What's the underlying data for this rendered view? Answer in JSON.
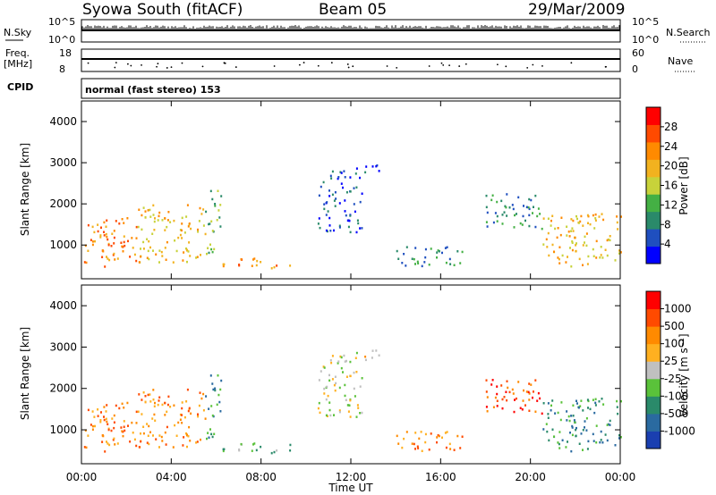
{
  "header": {
    "station": "Syowa South (fitACF)",
    "beam": "Beam 05",
    "date": "29/Mar/2009"
  },
  "top_panels": {
    "nsky_label": "N.Sky",
    "nsky_ticks": [
      "10^5",
      "10^0"
    ],
    "nsearch_label": "N.Search",
    "nsearch_ticks": [
      "10^5",
      "10^0"
    ],
    "freq_label": "Freq.",
    "freq_unit": "[MHz]",
    "freq_ticks": [
      "18",
      "8"
    ],
    "nave_label": "Nave",
    "nave_ticks": [
      "60",
      "0"
    ],
    "cpid_label": "CPID",
    "cpid_value": "normal (fast stereo) 153"
  },
  "chart_data": [
    {
      "type": "heatmap",
      "name": "power",
      "ylabel": "Slant Range [km]",
      "x_range_hours": [
        0,
        24
      ],
      "ylim": [
        180,
        4500
      ],
      "yticks": [
        "1000",
        "2000",
        "3000",
        "4000"
      ],
      "colorbar_label": "Power [dB]",
      "colorbar_ticks": [
        "28",
        "24",
        "20",
        "16",
        "12",
        "8",
        "4"
      ],
      "colors": [
        "#0000ff",
        "#1f4fbf",
        "#2a8a6a",
        "#44b044",
        "#c8d23a",
        "#f2b21f",
        "#ff8a00",
        "#ff4a00",
        "#ff0000"
      ],
      "echo_regions_hours_km": [
        {
          "t": [
            0.0,
            2.5
          ],
          "r": [
            500,
            1700
          ],
          "level": 6
        },
        {
          "t": [
            2.5,
            5.5
          ],
          "r": [
            600,
            2000
          ],
          "level": 5
        },
        {
          "t": [
            5.5,
            6.2
          ],
          "r": [
            800,
            2400
          ],
          "level": 3
        },
        {
          "t": [
            6.2,
            9.5
          ],
          "r": [
            450,
            700
          ],
          "level": 6
        },
        {
          "t": [
            10.5,
            12.5
          ],
          "r": [
            1300,
            2900
          ],
          "level": 1
        },
        {
          "t": [
            12.5,
            13.5
          ],
          "r": [
            2700,
            3000
          ],
          "level": 1
        },
        {
          "t": [
            14.0,
            17.0
          ],
          "r": [
            500,
            1000
          ],
          "level": 2
        },
        {
          "t": [
            18.0,
            20.5
          ],
          "r": [
            1400,
            2300
          ],
          "level": 2
        },
        {
          "t": [
            20.5,
            24.0
          ],
          "r": [
            500,
            1800
          ],
          "level": 5
        }
      ]
    },
    {
      "type": "heatmap",
      "name": "velocity",
      "ylabel": "Slant Range [km]",
      "xlabel": "Time UT",
      "x_range_hours": [
        0,
        24
      ],
      "xticks": [
        "00:00",
        "04:00",
        "08:00",
        "12:00",
        "16:00",
        "20:00",
        "00:00"
      ],
      "ylim": [
        180,
        4500
      ],
      "yticks": [
        "1000",
        "2000",
        "3000",
        "4000"
      ],
      "colorbar_label": "Velocity [m s⁻¹]",
      "colorbar_ticks": [
        "1000",
        "500",
        "100",
        "25",
        "-25",
        "-100",
        "-500",
        "-1000"
      ],
      "colors": [
        "#1a3fb0",
        "#2a6aa0",
        "#2a8a6a",
        "#5ac23a",
        "#c0c0c0",
        "#ffb020",
        "#ff8a00",
        "#ff4a00",
        "#ff0000"
      ],
      "echo_regions_hours_km": [
        {
          "t": [
            0.0,
            2.5
          ],
          "r": [
            500,
            1700
          ],
          "level": 6
        },
        {
          "t": [
            2.5,
            5.5
          ],
          "r": [
            600,
            2000
          ],
          "level": 6
        },
        {
          "t": [
            5.5,
            6.2
          ],
          "r": [
            800,
            2400
          ],
          "level": 2
        },
        {
          "t": [
            6.2,
            9.5
          ],
          "r": [
            450,
            700
          ],
          "level": 3
        },
        {
          "t": [
            10.5,
            12.5
          ],
          "r": [
            1300,
            2900
          ],
          "level": 4
        },
        {
          "t": [
            12.5,
            13.5
          ],
          "r": [
            2700,
            3000
          ],
          "level": 5
        },
        {
          "t": [
            14.0,
            17.0
          ],
          "r": [
            500,
            1000
          ],
          "level": 6
        },
        {
          "t": [
            18.0,
            20.5
          ],
          "r": [
            1400,
            2300
          ],
          "level": 7
        },
        {
          "t": [
            20.5,
            24.0
          ],
          "r": [
            500,
            1800
          ],
          "level": 2
        }
      ]
    }
  ]
}
